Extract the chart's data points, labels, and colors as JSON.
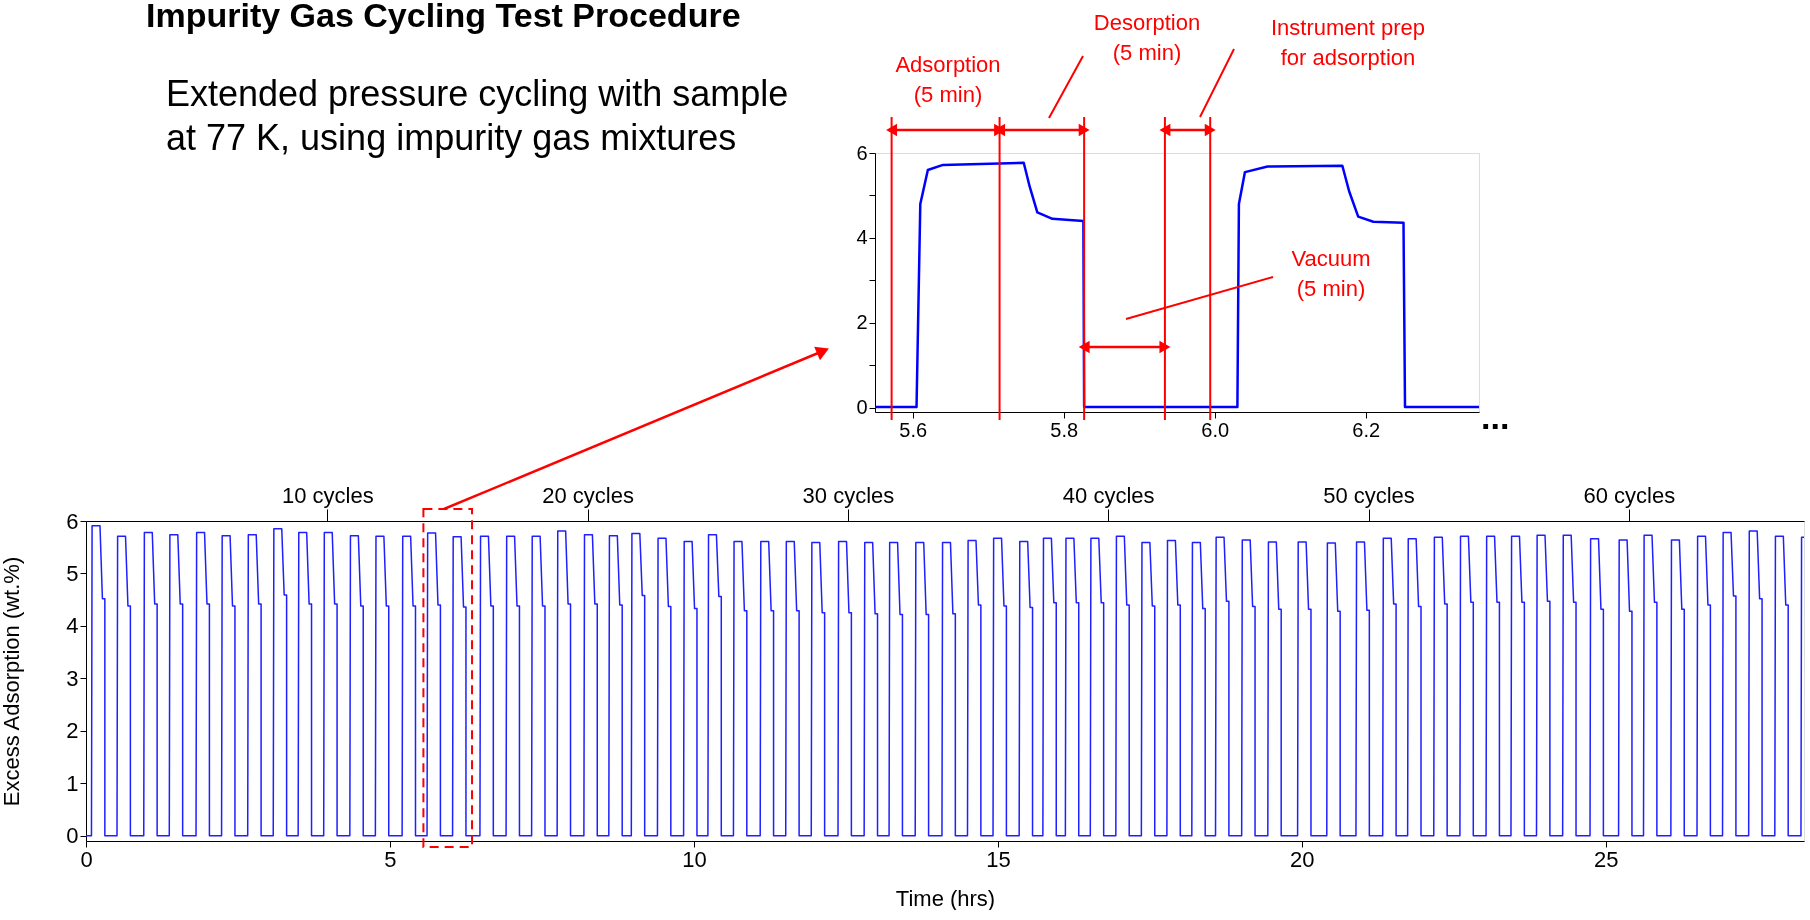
{
  "chart_data": [
    {
      "type": "line",
      "title": "Impurity Gas Cycling Test Procedure",
      "subtitle": "Extended pressure cycling with sample\nat 77 K, using impurity gas mixtures",
      "xlim": [
        5.55,
        6.35
      ],
      "xticks": [
        5.6,
        5.8,
        {
          "value": 6.0,
          "label": "6.0"
        },
        6.2
      ],
      "ylim": [
        -0.1,
        6
      ],
      "yticks": [
        0,
        {
          "value": 1,
          "label": null
        },
        2,
        {
          "value": 3,
          "label": null
        },
        4,
        {
          "value": 5,
          "label": null
        },
        6
      ],
      "grid": false,
      "series": [
        {
          "color": "#0000ff",
          "x": [
            5.55,
            5.605,
            5.61,
            5.62,
            5.64,
            5.747,
            5.755,
            5.765,
            5.785,
            5.826,
            5.827,
            6.03,
            6.032,
            6.04,
            6.07,
            6.169,
            6.178,
            6.19,
            6.21,
            6.25,
            6.252,
            6.35
          ],
          "values": [
            0.02,
            0.02,
            4.8,
            5.6,
            5.72,
            5.77,
            5.2,
            4.6,
            4.45,
            4.4,
            0.02,
            0.02,
            4.8,
            5.55,
            5.68,
            5.7,
            5.1,
            4.5,
            4.38,
            4.36,
            0.02,
            0.02
          ]
        }
      ],
      "ref_lines": [
        {
          "axis": "x",
          "value": 5.572,
          "color": "#ff0000"
        },
        {
          "axis": "x",
          "value": 5.715,
          "color": "#ff0000"
        },
        {
          "axis": "x",
          "value": 5.827,
          "color": "#ff0000"
        },
        {
          "axis": "x",
          "value": 5.934,
          "color": "#ff0000"
        },
        {
          "axis": "x",
          "value": 5.994,
          "color": "#ff0000"
        }
      ],
      "annotations": [
        "Adsorption\n(5 min)",
        "Desorption\n(5 min)",
        "Instrument prep\nfor adsorption",
        "Vacuum\n(5 min)"
      ]
    },
    {
      "type": "line",
      "xlabel": "Time (hrs)",
      "ylabel": "Excess Adsorption (wt.%)",
      "xlim": [
        0,
        28.26
      ],
      "xticks": [
        0,
        5,
        10,
        15,
        20,
        25
      ],
      "x2lim": [
        0.73,
        66.73
      ],
      "x2ticks": [
        {
          "value": 10,
          "label": "10 cycles"
        },
        {
          "value": 20,
          "label": "20 cycles"
        },
        {
          "value": 30,
          "label": "30 cycles"
        },
        {
          "value": 40,
          "label": "40 cycles"
        },
        {
          "value": 50,
          "label": "50 cycles"
        },
        {
          "value": 60,
          "label": "60 cycles"
        }
      ],
      "ylim": [
        -0.1,
        6
      ],
      "yticks": [
        0,
        1,
        2,
        3,
        4,
        5,
        6
      ],
      "grid": false,
      "annotations": [
        "..."
      ],
      "series": [
        {
          "color": "#1f1fff",
          "x": [
            0,
            0.09,
            0.1,
            0.23,
            0.27,
            0.31,
            0.31,
            0.51,
            0.52,
            0.65,
            0.69,
            0.73,
            0.73,
            0.95,
            0.96,
            1.09,
            1.13,
            1.17,
            1.17,
            1.37,
            1.38,
            1.51,
            1.55,
            1.59,
            1.59,
            1.81,
            1.82,
            1.95,
            1.99,
            2.03,
            2.03,
            2.23,
            2.24,
            2.37,
            2.41,
            2.45,
            2.45,
            2.66,
            2.67,
            2.8,
            2.84,
            2.88,
            2.88,
            3.08,
            3.09,
            3.22,
            3.26,
            3.3,
            3.3,
            3.49,
            3.5,
            3.63,
            3.67,
            3.71,
            3.71,
            3.91,
            3.92,
            4.05,
            4.09,
            4.13,
            4.13,
            4.34,
            4.35,
            4.48,
            4.52,
            4.56,
            4.56,
            4.76,
            4.77,
            4.9,
            4.94,
            4.98,
            4.98,
            5.2,
            5.21,
            5.34,
            5.38,
            5.42,
            5.42,
            5.61,
            5.62,
            5.75,
            5.79,
            5.83,
            5.83,
            6.03,
            6.04,
            6.17,
            6.21,
            6.25,
            6.25,
            6.48,
            6.49,
            6.62,
            6.66,
            6.7,
            6.7,
            6.91,
            6.92,
            7.05,
            7.09,
            7.13,
            7.13,
            7.33,
            7.34,
            7.47,
            7.51,
            7.55,
            7.55,
            7.75,
            7.76,
            7.89,
            7.93,
            7.97,
            7.97,
            8.19,
            8.2,
            8.33,
            8.37,
            8.41,
            8.41,
            8.6,
            8.61,
            8.74,
            8.78,
            8.82,
            8.82,
            8.97,
            8.98,
            9.11,
            9.15,
            9.19,
            9.19,
            9.4,
            9.41,
            9.54,
            9.58,
            9.62,
            9.62,
            9.83,
            9.84,
            9.97,
            10.01,
            10.05,
            10.05,
            10.23,
            10.24,
            10.37,
            10.41,
            10.45,
            10.45,
            10.65,
            10.66,
            10.79,
            10.83,
            10.87,
            10.87,
            11.09,
            11.1,
            11.23,
            11.27,
            11.31,
            11.31,
            11.51,
            11.52,
            11.65,
            11.69,
            11.73,
            11.73,
            11.93,
            11.94,
            12.07,
            12.11,
            12.15,
            12.15,
            12.37,
            12.38,
            12.51,
            12.55,
            12.59,
            12.59,
            12.8,
            12.81,
            12.94,
            12.98,
            13.02,
            13.02,
            13.21,
            13.22,
            13.35,
            13.39,
            13.43,
            13.43,
            13.64,
            13.65,
            13.78,
            13.82,
            13.86,
            13.86,
            14.08,
            14.09,
            14.22,
            14.26,
            14.3,
            14.3,
            14.5,
            14.51,
            14.64,
            14.68,
            14.72,
            14.72,
            14.92,
            14.93,
            15.06,
            15.1,
            15.14,
            15.14,
            15.35,
            15.36,
            15.49,
            15.53,
            15.57,
            15.57,
            15.74,
            15.75,
            15.88,
            15.92,
            15.96,
            15.96,
            16.11,
            16.12,
            16.25,
            16.29,
            16.33,
            16.33,
            16.52,
            16.53,
            16.66,
            16.7,
            16.74,
            16.74,
            16.94,
            16.95,
            17.08,
            17.12,
            17.16,
            17.16,
            17.36,
            17.37,
            17.5,
            17.54,
            17.58,
            17.58,
            17.78,
            17.79,
            17.92,
            17.96,
            18.0,
            18.0,
            18.19,
            18.2,
            18.33,
            18.37,
            18.41,
            18.41,
            18.58,
            18.59,
            18.72,
            18.76,
            18.8,
            18.8,
            19.01,
            19.02,
            19.15,
            19.19,
            19.23,
            19.23,
            19.44,
            19.45,
            19.58,
            19.62,
            19.66,
            19.66,
            19.93,
            19.94,
            20.07,
            20.11,
            20.15,
            20.15,
            20.41,
            20.42,
            20.55,
            20.59,
            20.63,
            20.63,
            20.89,
            20.9,
            21.03,
            21.07,
            21.11,
            21.11,
            21.33,
            21.34,
            21.47,
            21.51,
            21.55,
            21.55,
            21.74,
            21.75,
            21.88,
            21.92,
            21.96,
            21.96,
            22.17,
            22.18,
            22.31,
            22.35,
            22.39,
            22.39,
            22.6,
            22.61,
            22.74,
            22.78,
            22.82,
            22.82,
            23.03,
            23.04,
            23.17,
            23.21,
            23.25,
            23.25,
            23.44,
            23.45,
            23.58,
            23.62,
            23.66,
            23.66,
            23.86,
            23.87,
            24.0,
            24.04,
            24.08,
            24.08,
            24.29,
            24.3,
            24.43,
            24.47,
            24.51,
            24.51,
            24.74,
            24.75,
            24.88,
            24.92,
            24.96,
            24.96,
            25.21,
            25.22,
            25.35,
            25.39,
            25.43,
            25.43,
            25.62,
            25.63,
            25.76,
            25.8,
            25.84,
            25.84,
            26.07,
            26.08,
            26.21,
            26.25,
            26.29,
            26.29,
            26.5,
            26.51,
            26.64,
            26.68,
            26.72,
            26.72,
            26.92,
            26.93,
            27.06,
            27.1,
            27.14,
            27.14,
            27.35,
            27.36,
            27.49,
            27.53,
            27.57,
            27.57,
            27.78,
            27.79,
            27.92,
            27.96,
            28.0,
            28.0,
            28.21,
            28.22,
            28.26
          ],
          "values": [
            0,
            0,
            5.91,
            5.91,
            4.52,
            4.52,
            0,
            0,
            5.71,
            5.71,
            4.38,
            4.38,
            0,
            0,
            5.78,
            5.78,
            4.42,
            4.42,
            0,
            0,
            5.74,
            5.74,
            4.42,
            4.42,
            0,
            0,
            5.78,
            5.78,
            4.42,
            4.42,
            0,
            0,
            5.72,
            5.72,
            4.38,
            4.38,
            0,
            0,
            5.74,
            5.74,
            4.42,
            4.42,
            0,
            0,
            5.85,
            5.85,
            4.59,
            4.59,
            0,
            0,
            5.78,
            5.78,
            4.42,
            4.42,
            0,
            0,
            5.78,
            5.78,
            4.42,
            4.42,
            0,
            0,
            5.72,
            5.72,
            4.38,
            4.38,
            0,
            0,
            5.71,
            5.71,
            4.38,
            4.38,
            0,
            0,
            5.71,
            5.71,
            4.38,
            4.38,
            0,
            0,
            5.77,
            5.77,
            4.4,
            4.4,
            0,
            0,
            5.7,
            5.7,
            4.36,
            4.36,
            0,
            0,
            5.71,
            5.71,
            4.38,
            4.38,
            0,
            0,
            5.71,
            5.71,
            4.38,
            4.38,
            0,
            0,
            5.71,
            5.71,
            4.38,
            4.38,
            0,
            0,
            5.81,
            5.81,
            4.42,
            4.42,
            0,
            0,
            5.74,
            5.74,
            4.42,
            4.42,
            0,
            0,
            5.72,
            5.72,
            4.4,
            4.4,
            0,
            0,
            5.76,
            5.76,
            4.58,
            4.58,
            0,
            0,
            5.67,
            5.67,
            4.37,
            4.37,
            0,
            0,
            5.61,
            5.61,
            4.33,
            4.33,
            0,
            0,
            5.74,
            5.74,
            4.56,
            4.56,
            0,
            0,
            5.61,
            5.61,
            4.29,
            4.29,
            0,
            0,
            5.61,
            5.61,
            4.29,
            4.29,
            0,
            0,
            5.61,
            5.61,
            4.29,
            4.29,
            0,
            0,
            5.59,
            5.59,
            4.25,
            4.25,
            0,
            0,
            5.61,
            5.61,
            4.25,
            4.25,
            0,
            0,
            5.59,
            5.59,
            4.23,
            4.23,
            0,
            0,
            5.59,
            5.59,
            4.22,
            4.22,
            0,
            0,
            5.59,
            5.59,
            4.22,
            4.22,
            0,
            0,
            5.59,
            5.59,
            4.23,
            4.23,
            0,
            0,
            5.63,
            5.63,
            4.4,
            4.4,
            0,
            0,
            5.67,
            5.67,
            4.38,
            4.38,
            0,
            0,
            5.61,
            5.61,
            4.35,
            4.35,
            0,
            0,
            5.67,
            5.67,
            4.44,
            4.44,
            0,
            0,
            5.67,
            5.67,
            4.44,
            4.44,
            0,
            0,
            5.67,
            5.67,
            4.44,
            4.44,
            0,
            0,
            5.71,
            5.71,
            4.4,
            4.4,
            0,
            0,
            5.59,
            5.59,
            4.38,
            4.38,
            0,
            0,
            5.63,
            5.63,
            4.4,
            4.4,
            0,
            0,
            5.59,
            5.59,
            4.33,
            4.33,
            0,
            0,
            5.69,
            5.69,
            4.47,
            4.47,
            0,
            0,
            5.64,
            5.64,
            4.37,
            4.37,
            0,
            0,
            5.6,
            5.6,
            4.32,
            4.32,
            0,
            0,
            5.6,
            5.6,
            4.32,
            4.32,
            0,
            0,
            5.58,
            5.58,
            4.28,
            4.28,
            0,
            0,
            5.6,
            5.6,
            4.3,
            4.3,
            0,
            0,
            5.67,
            5.67,
            4.42,
            4.42,
            0,
            0,
            5.66,
            5.66,
            4.37,
            4.37,
            0,
            0,
            5.69,
            5.69,
            4.42,
            4.42,
            0,
            0,
            5.71,
            5.71,
            4.45,
            4.45,
            0,
            0,
            5.71,
            5.71,
            4.45,
            4.45,
            0,
            0,
            5.71,
            5.71,
            4.45,
            4.45,
            0,
            0,
            5.73,
            5.73,
            4.47,
            4.47,
            0,
            0,
            5.73,
            5.73,
            4.45,
            4.45,
            0,
            0,
            5.66,
            5.66,
            4.32,
            4.32,
            0,
            0,
            5.64,
            5.64,
            4.28,
            4.28,
            0,
            0,
            5.73,
            5.73,
            4.45,
            4.45,
            0,
            0,
            5.64,
            5.64,
            4.32,
            4.32,
            0,
            0,
            5.71,
            5.71,
            4.4,
            4.4,
            0,
            0,
            5.78,
            5.78,
            4.57,
            4.57,
            0,
            0,
            5.81,
            5.81,
            4.52,
            4.52,
            0,
            0,
            5.71,
            5.71,
            4.4,
            4.4,
            0,
            0,
            5.69,
            5.69
          ]
        }
      ]
    }
  ]
}
